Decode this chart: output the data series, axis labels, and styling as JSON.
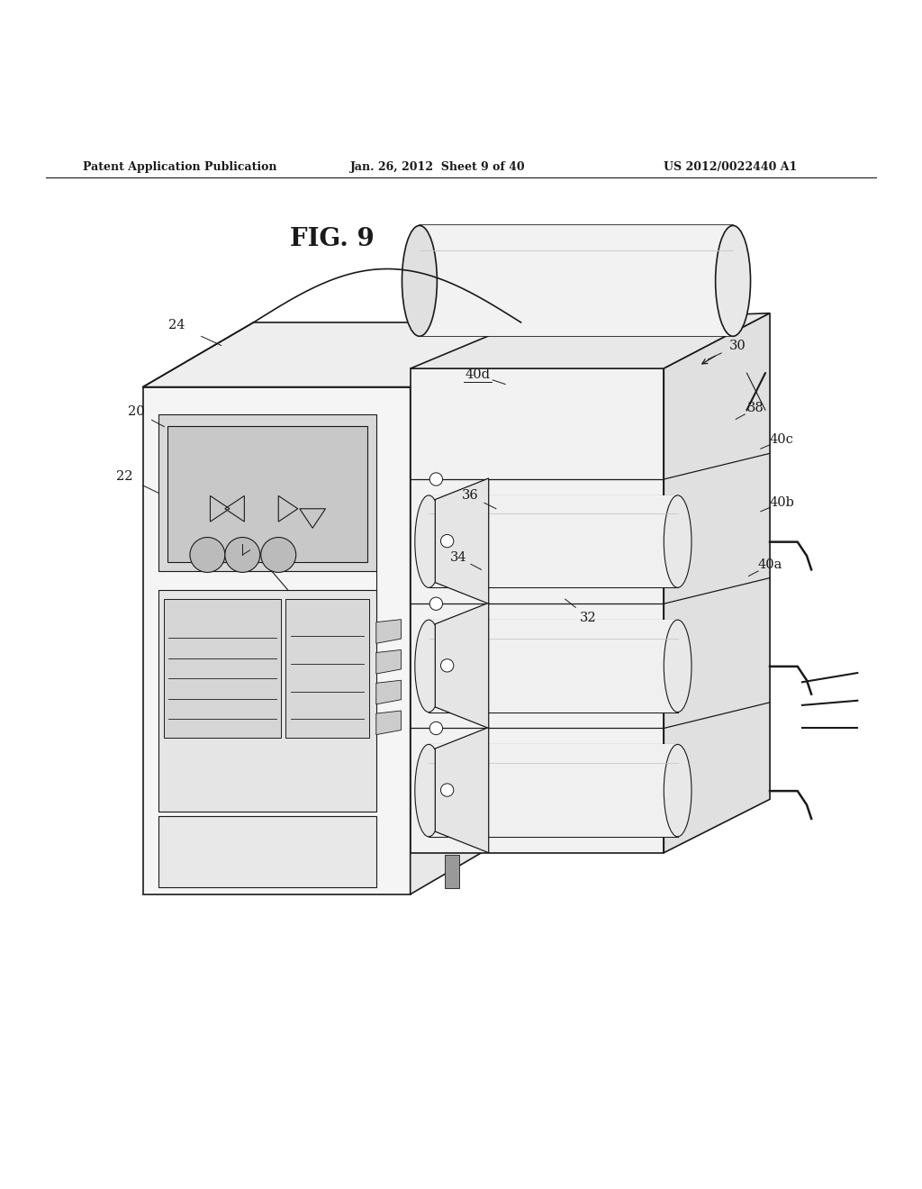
{
  "title": "FIG. 9",
  "header_left": "Patent Application Publication",
  "header_center": "Jan. 26, 2012  Sheet 9 of 40",
  "header_right": "US 2012/0022440 A1",
  "bg_color": "#ffffff",
  "line_color": "#1a1a1a",
  "label_color": "#1a1a1a",
  "label_fs": 10.5,
  "header_fs": 9,
  "title_fs": 20
}
